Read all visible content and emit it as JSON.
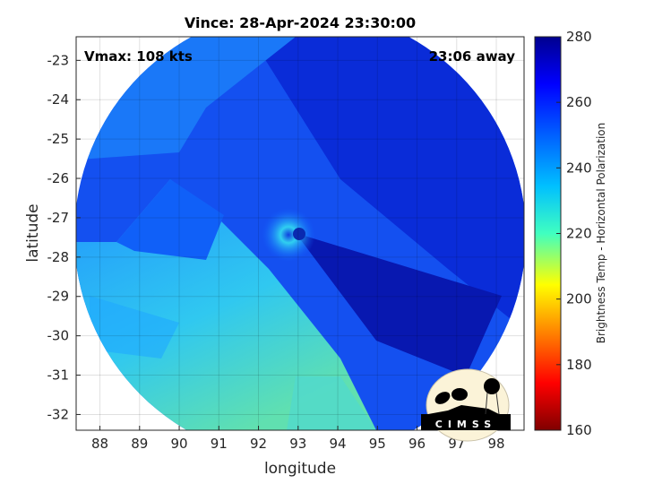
{
  "title": "Vince: 28-Apr-2024 23:30:00",
  "annotations": {
    "vmax": "Vmax: 108 kts",
    "time_away": "23:06 away"
  },
  "axes": {
    "xlabel": "longitude",
    "ylabel": "latitude",
    "xticks": [
      "88",
      "89",
      "90",
      "91",
      "92",
      "93",
      "94",
      "95",
      "96",
      "97",
      "98"
    ],
    "yticks": [
      "-23",
      "-24",
      "-25",
      "-26",
      "-27",
      "-28",
      "-29",
      "-30",
      "-31",
      "-32"
    ],
    "xlim": [
      87.4,
      98.7
    ],
    "ylim": [
      -32.4,
      -22.4
    ],
    "grid": true
  },
  "colorbar": {
    "label": "Brightness Temp - Horizontal Polarization",
    "ticks": [
      "280",
      "260",
      "240",
      "220",
      "200",
      "180",
      "160"
    ],
    "range": [
      160,
      280
    ],
    "colormap": "jet",
    "colors": [
      "#800000",
      "#ff0000",
      "#ffff00",
      "#00ffff",
      "#0080ff",
      "#0000ff",
      "#00008f"
    ]
  },
  "logo": {
    "text": "CIMSS"
  }
}
